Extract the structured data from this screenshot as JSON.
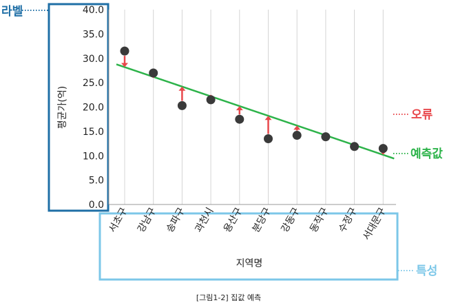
{
  "chart_data": {
    "type": "scatter",
    "categories": [
      "서초구",
      "강남구",
      "송파구",
      "과천시",
      "용산구",
      "분당구",
      "강동구",
      "동작구",
      "수정구",
      "서대문구"
    ],
    "values": [
      31.5,
      27.0,
      20.3,
      21.5,
      17.5,
      13.5,
      14.2,
      13.9,
      11.9,
      11.5
    ],
    "predicted_line": {
      "start": 28.2,
      "end": 10.2
    },
    "ylabel": "평균가(억)",
    "xlabel": "지역명",
    "ylim": [
      0,
      40
    ],
    "yticks": [
      "0.0",
      "5.0",
      "10.0",
      "15.0",
      "20.0",
      "25.0",
      "30.0",
      "35.0",
      "40.0"
    ],
    "grid": "vertical",
    "colors": {
      "point": "#3a3a3a",
      "line": "#2db34a",
      "error": "#e8474b",
      "label_box": "#1f6fa6",
      "feature_box": "#7cc7e8"
    }
  },
  "annotations": {
    "label": "라벨",
    "error": "오류",
    "prediction": "예측값",
    "feature": "특성"
  },
  "caption": "[그림1-2] 집값 예측"
}
